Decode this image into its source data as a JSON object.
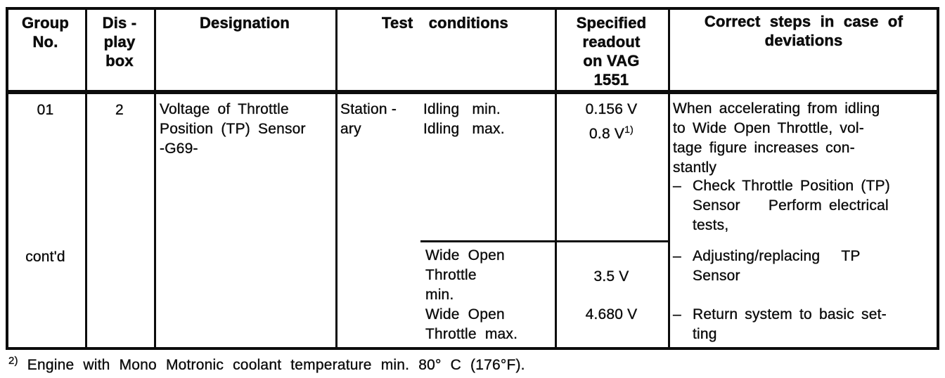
{
  "colors": {
    "ink": "#0c0c0c",
    "paper": "#ffffff"
  },
  "table": {
    "header": {
      "group_no": "Group\nNo.",
      "display_box": "Dis -\nplay\nbox",
      "designation": "Designation",
      "test_conditions": "Test conditions",
      "specified_readout": "Specified\nreadout\non VAG\n1551",
      "correct_steps": "Correct steps in case of\ndeviations"
    },
    "row": {
      "group_no": "01",
      "group_no_contd": "cont'd",
      "display_box": "2",
      "designation": "Voltage of Throttle\nPosition (TP) Sensor\n-G69-",
      "test_conditions": {
        "state": "Station -\nary",
        "idling": "Idling min.\nIdling max.",
        "wide_open_throttle": "Wide Open\nThrottle\nmin.\nWide Open\nThrottle max."
      },
      "specified_readout": {
        "idling_min": "0.156 V",
        "idling_max": "0.8 V",
        "idling_max_footnote_ref": "1)",
        "wot_min": "3.5 V",
        "wot_max": "4.680 V"
      },
      "correct_steps": {
        "intro": "When accelerating from idling\nto Wide Open Throttle, vol-\ntage figure increases con-\nstantly",
        "bullets": [
          {
            "dash": "–",
            "text": "Check Throttle Position (TP)\nSensor    Perform electrical\ntests,"
          },
          {
            "dash": "–",
            "text": "Adjusting/replacing   TP\nSensor"
          },
          {
            "dash": "–",
            "text": "Return system to basic set-\nting"
          }
        ]
      }
    }
  },
  "footnote": {
    "marker": "2)",
    "text": " Engine with Mono Motronic coolant temperature min. 80° C (176°F)."
  }
}
